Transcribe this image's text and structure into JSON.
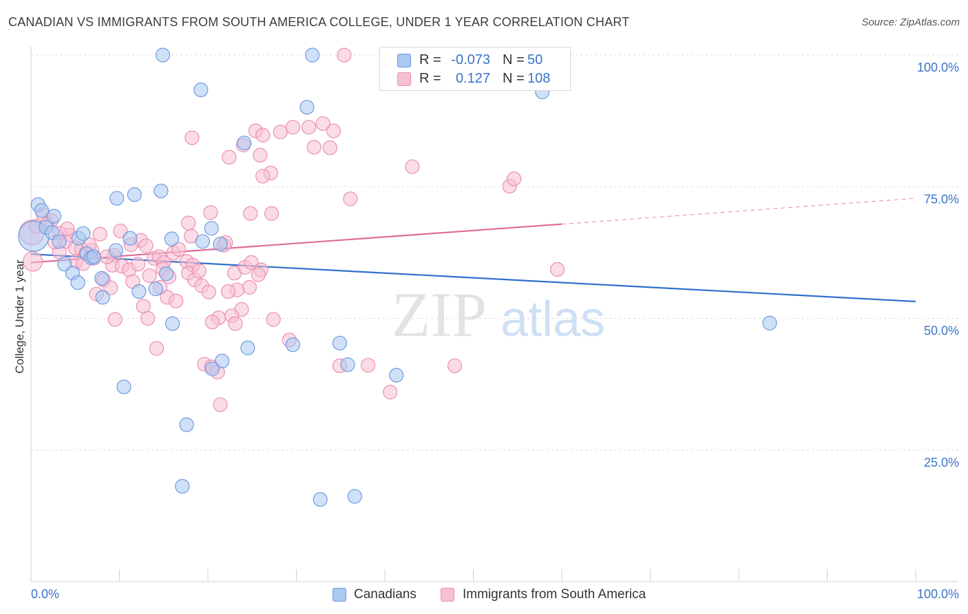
{
  "header": {
    "title": "CANADIAN VS IMMIGRANTS FROM SOUTH AMERICA COLLEGE, UNDER 1 YEAR CORRELATION CHART",
    "source": "Source: ZipAtlas.com"
  },
  "watermark": {
    "zip": "ZIP",
    "atlas": "atlas"
  },
  "legend": {
    "rows": [
      {
        "r_label": "R =",
        "r_value": "-0.073",
        "n_label": "N =",
        "n_value": "50",
        "color": "#aac8f0",
        "border": "#6d9be0"
      },
      {
        "r_label": "R =",
        "r_value": "0.127",
        "n_label": "N =",
        "n_value": "108",
        "color": "#f7c0d2",
        "border": "#eb8fb0"
      }
    ]
  },
  "bottom_legend": {
    "items": [
      {
        "label": "Canadians",
        "color": "#aac8f0",
        "border": "#6d9be0"
      },
      {
        "label": "Immigrants from South America",
        "color": "#f7c0d2",
        "border": "#eb8fb0"
      }
    ]
  },
  "chart_data": {
    "type": "scatter",
    "title": "CANADIAN VS IMMIGRANTS FROM SOUTH AMERICA COLLEGE, UNDER 1 YEAR CORRELATION CHART",
    "xlabel": "",
    "ylabel": "College, Under 1 year",
    "xlim": [
      0,
      100
    ],
    "ylim": [
      0,
      100
    ],
    "x_tick_labels": [
      {
        "value": 0,
        "label": "0.0%"
      },
      {
        "value": 100,
        "label": "100.0%"
      }
    ],
    "y_tick_labels": [
      {
        "value": 100,
        "label": "100.0%"
      },
      {
        "value": 75,
        "label": "75.0%"
      },
      {
        "value": 50,
        "label": "50.0%"
      },
      {
        "value": 25,
        "label": "25.0%"
      }
    ],
    "y_gridlines": [
      100,
      75,
      50,
      25
    ],
    "grid": true,
    "legend_position": "top-center",
    "series": [
      {
        "name": "Canadians",
        "color": "#6d9be0",
        "fill": "#aac8f0",
        "trend": {
          "x": [
            0,
            100
          ],
          "y": [
            62.2,
            53.2
          ],
          "color": "#2f6fcc"
        },
        "points": [
          [
            0.3,
            65.6,
            22
          ],
          [
            0.8,
            71.6,
            10
          ],
          [
            1.2,
            70.5,
            10
          ],
          [
            2.6,
            69.4,
            10
          ],
          [
            1.7,
            67.3,
            10
          ],
          [
            2.4,
            66.3,
            10
          ],
          [
            5.4,
            65.2,
            10
          ],
          [
            5.9,
            66.1,
            10
          ],
          [
            3.2,
            64.6,
            10
          ],
          [
            6.3,
            62.3,
            10
          ],
          [
            6.8,
            61.5,
            10
          ],
          [
            7.1,
            61.7,
            10
          ],
          [
            3.8,
            60.3,
            10
          ],
          [
            4.7,
            58.6,
            10
          ],
          [
            5.3,
            56.8,
            10
          ],
          [
            8.0,
            57.6,
            10
          ],
          [
            8.1,
            54.0,
            10
          ],
          [
            9.6,
            62.9,
            10
          ],
          [
            11.2,
            65.2,
            10
          ],
          [
            14.1,
            55.6,
            10
          ],
          [
            15.9,
            65.1,
            10
          ],
          [
            9.7,
            72.8,
            10
          ],
          [
            11.7,
            73.5,
            10
          ],
          [
            14.7,
            74.2,
            10
          ],
          [
            14.9,
            100.0,
            10
          ],
          [
            19.2,
            93.4,
            10
          ],
          [
            31.8,
            100.0,
            10
          ],
          [
            31.2,
            90.1,
            10
          ],
          [
            24.1,
            83.3,
            10
          ],
          [
            20.4,
            67.1,
            10
          ],
          [
            21.4,
            64.1,
            10
          ],
          [
            19.4,
            64.6,
            10
          ],
          [
            12.2,
            55.1,
            10
          ],
          [
            15.3,
            58.5,
            10
          ],
          [
            16.0,
            49.0,
            10
          ],
          [
            21.6,
            41.9,
            10
          ],
          [
            20.5,
            40.4,
            10
          ],
          [
            24.5,
            44.4,
            10
          ],
          [
            29.6,
            45.0,
            10
          ],
          [
            35.8,
            41.2,
            10
          ],
          [
            34.9,
            45.3,
            10
          ],
          [
            41.3,
            39.2,
            10
          ],
          [
            10.5,
            37.0,
            10
          ],
          [
            17.6,
            29.8,
            10
          ],
          [
            17.1,
            18.1,
            10
          ],
          [
            32.7,
            15.6,
            10
          ],
          [
            36.6,
            16.2,
            10
          ],
          [
            57.4,
            100.0,
            10
          ],
          [
            57.8,
            93.0,
            10
          ],
          [
            83.5,
            49.1,
            10
          ]
        ]
      },
      {
        "name": "Immigrants from South America",
        "color": "#eb8fb0",
        "fill": "#f7c0d2",
        "trend": {
          "x": [
            0,
            60
          ],
          "y": [
            60.6,
            67.9
          ],
          "dashed_to": [
            100,
            72.8
          ],
          "color": "#e06c94"
        },
        "points": [
          [
            0.1,
            66.3,
            18
          ],
          [
            0.2,
            60.8,
            14
          ],
          [
            0.6,
            67.5,
            10
          ],
          [
            1.4,
            69.7,
            10
          ],
          [
            2.3,
            68.6,
            10
          ],
          [
            1.8,
            67.9,
            10
          ],
          [
            3.3,
            66.2,
            10
          ],
          [
            4.4,
            65.8,
            10
          ],
          [
            3.9,
            64.6,
            10
          ],
          [
            5.0,
            63.4,
            10
          ],
          [
            5.7,
            63.1,
            10
          ],
          [
            6.9,
            62.9,
            10
          ],
          [
            6.2,
            62.3,
            10
          ],
          [
            7.1,
            61.4,
            10
          ],
          [
            5.1,
            60.8,
            10
          ],
          [
            5.9,
            60.4,
            10
          ],
          [
            3.2,
            62.6,
            10
          ],
          [
            7.8,
            66.0,
            10
          ],
          [
            10.1,
            66.6,
            10
          ],
          [
            12.4,
            64.8,
            10
          ],
          [
            11.3,
            64.0,
            10
          ],
          [
            13.0,
            63.8,
            10
          ],
          [
            9.4,
            62.0,
            10
          ],
          [
            9.2,
            60.1,
            10
          ],
          [
            10.3,
            59.9,
            10
          ],
          [
            11.1,
            59.2,
            10
          ],
          [
            12.1,
            60.3,
            10
          ],
          [
            13.9,
            61.4,
            10
          ],
          [
            14.5,
            61.7,
            10
          ],
          [
            15.0,
            60.6,
            10
          ],
          [
            14.9,
            59.4,
            10
          ],
          [
            16.1,
            62.4,
            10
          ],
          [
            16.7,
            63.1,
            10
          ],
          [
            17.6,
            60.8,
            10
          ],
          [
            18.3,
            60.1,
            10
          ],
          [
            17.8,
            58.6,
            10
          ],
          [
            18.5,
            57.3,
            10
          ],
          [
            19.3,
            56.2,
            10
          ],
          [
            20.1,
            55.0,
            10
          ],
          [
            21.8,
            63.9,
            10
          ],
          [
            23.0,
            58.6,
            10
          ],
          [
            24.2,
            59.7,
            10
          ],
          [
            24.9,
            60.6,
            10
          ],
          [
            26.0,
            59.2,
            10
          ],
          [
            24.7,
            55.9,
            10
          ],
          [
            23.3,
            55.4,
            10
          ],
          [
            22.3,
            55.1,
            10
          ],
          [
            23.8,
            51.7,
            10
          ],
          [
            22.7,
            50.5,
            10
          ],
          [
            23.1,
            49.0,
            10
          ],
          [
            21.2,
            50.1,
            10
          ],
          [
            20.5,
            49.3,
            10
          ],
          [
            15.4,
            54.0,
            10
          ],
          [
            16.4,
            53.3,
            10
          ],
          [
            12.7,
            52.3,
            10
          ],
          [
            13.2,
            50.0,
            10
          ],
          [
            9.5,
            49.8,
            10
          ],
          [
            14.2,
            44.3,
            10
          ],
          [
            8.2,
            57.3,
            10
          ],
          [
            9.0,
            55.8,
            10
          ],
          [
            11.5,
            57.0,
            10
          ],
          [
            13.4,
            58.1,
            10
          ],
          [
            14.6,
            55.9,
            10
          ],
          [
            7.4,
            54.6,
            10
          ],
          [
            18.1,
            65.6,
            10
          ],
          [
            17.8,
            68.1,
            10
          ],
          [
            20.3,
            70.1,
            10
          ],
          [
            24.8,
            69.9,
            10
          ],
          [
            27.2,
            69.9,
            10
          ],
          [
            22.4,
            80.6,
            10
          ],
          [
            18.2,
            84.3,
            10
          ],
          [
            24.0,
            82.9,
            10
          ],
          [
            25.4,
            85.6,
            10
          ],
          [
            26.2,
            84.8,
            10
          ],
          [
            25.9,
            81.0,
            10
          ],
          [
            27.1,
            77.6,
            10
          ],
          [
            28.2,
            85.4,
            10
          ],
          [
            29.6,
            86.3,
            10
          ],
          [
            31.4,
            86.3,
            10
          ],
          [
            32.0,
            82.5,
            10
          ],
          [
            33.0,
            87.0,
            10
          ],
          [
            34.2,
            85.6,
            10
          ],
          [
            33.8,
            82.4,
            10
          ],
          [
            26.2,
            77.0,
            10
          ],
          [
            36.1,
            72.7,
            10
          ],
          [
            43.1,
            78.8,
            10
          ],
          [
            54.1,
            75.1,
            10
          ],
          [
            54.6,
            76.5,
            10
          ],
          [
            35.4,
            100.0,
            10
          ],
          [
            59.5,
            59.3,
            10
          ],
          [
            19.6,
            41.3,
            10
          ],
          [
            20.4,
            40.8,
            10
          ],
          [
            21.1,
            39.8,
            10
          ],
          [
            21.4,
            33.6,
            10
          ],
          [
            27.4,
            49.8,
            10
          ],
          [
            29.2,
            45.9,
            10
          ],
          [
            34.9,
            41.0,
            10
          ],
          [
            38.1,
            41.1,
            10
          ],
          [
            40.6,
            36.0,
            10
          ],
          [
            47.9,
            41.0,
            10
          ],
          [
            2.7,
            64.5,
            10
          ],
          [
            4.1,
            67.0,
            10
          ],
          [
            6.6,
            64.0,
            10
          ],
          [
            8.6,
            61.7,
            10
          ],
          [
            19.0,
            59.0,
            10
          ],
          [
            22.0,
            64.4,
            10
          ],
          [
            25.7,
            58.3,
            10
          ],
          [
            15.6,
            57.9,
            10
          ]
        ]
      }
    ]
  }
}
